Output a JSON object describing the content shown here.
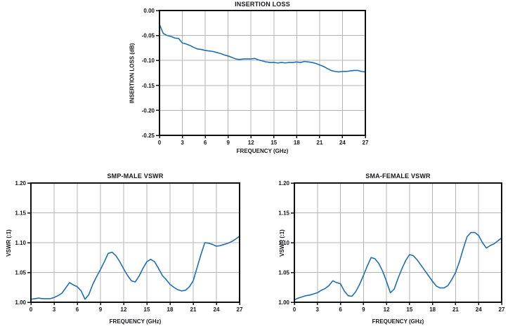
{
  "page": {
    "background": "#ffffff"
  },
  "style": {
    "line_color": "#1f6eb3",
    "grid_color": "#b5b5b5",
    "axis_color": "#111111",
    "text_color": "#15151d",
    "tick_font_size": 8
  },
  "chart_data": [
    {
      "id": "insertion-loss",
      "type": "line",
      "title": "INSERTION LOSS",
      "xlabel": "FREQUENCY (GHz)",
      "ylabel": "INSERTION LOSS (dB)",
      "xlim": [
        0,
        27
      ],
      "ylim": [
        -0.25,
        0.0
      ],
      "x_ticks": [
        0,
        3,
        6,
        9,
        12,
        15,
        18,
        21,
        24,
        27
      ],
      "x_tick_labels": [
        "0",
        "3",
        "6",
        "9",
        "12",
        "15",
        "18",
        "21",
        "24",
        "27"
      ],
      "y_ticks": [
        0.0,
        -0.05,
        -0.1,
        -0.15,
        -0.2,
        -0.25
      ],
      "y_tick_labels": [
        "0.00",
        "-0.05",
        "-0.10",
        "-0.15",
        "-0.20",
        "-0.25"
      ],
      "grid": true,
      "legend": "none",
      "series": [
        {
          "name": "insertion-loss",
          "x_start": 0,
          "x_step": 0.5,
          "values": [
            -0.028,
            -0.046,
            -0.05,
            -0.052,
            -0.055,
            -0.056,
            -0.065,
            -0.067,
            -0.07,
            -0.074,
            -0.077,
            -0.078,
            -0.08,
            -0.081,
            -0.082,
            -0.084,
            -0.086,
            -0.089,
            -0.091,
            -0.094,
            -0.097,
            -0.098,
            -0.097,
            -0.097,
            -0.097,
            -0.096,
            -0.099,
            -0.101,
            -0.103,
            -0.104,
            -0.104,
            -0.105,
            -0.104,
            -0.105,
            -0.104,
            -0.104,
            -0.103,
            -0.104,
            -0.102,
            -0.103,
            -0.104,
            -0.106,
            -0.109,
            -0.112,
            -0.116,
            -0.12,
            -0.122,
            -0.123,
            -0.122,
            -0.122,
            -0.121,
            -0.12,
            -0.12,
            -0.122,
            -0.123
          ]
        }
      ]
    },
    {
      "id": "smp-male-vswr",
      "type": "line",
      "title": "SMP-MALE VSWR",
      "xlabel": "FREQUENCY (GHz)",
      "ylabel": "VSWR (:1)",
      "xlim": [
        0,
        27
      ],
      "ylim": [
        1.0,
        1.2
      ],
      "x_ticks": [
        0,
        3,
        6,
        9,
        12,
        15,
        18,
        21,
        24,
        27
      ],
      "x_tick_labels": [
        "0",
        "3",
        "6",
        "9",
        "12",
        "15",
        "18",
        "21",
        "24",
        "27"
      ],
      "y_ticks": [
        1.0,
        1.05,
        1.1,
        1.15,
        1.2
      ],
      "y_tick_labels": [
        "1.00",
        "1.05",
        "1.10",
        "1.15",
        "1.20"
      ],
      "grid": true,
      "legend": "none",
      "series": [
        {
          "name": "smp-male-vswr",
          "x_start": 0,
          "x_step": 0.5,
          "values": [
            1.005,
            1.006,
            1.007,
            1.006,
            1.006,
            1.006,
            1.008,
            1.011,
            1.015,
            1.024,
            1.033,
            1.029,
            1.026,
            1.019,
            1.005,
            1.013,
            1.03,
            1.043,
            1.055,
            1.068,
            1.082,
            1.084,
            1.078,
            1.068,
            1.056,
            1.045,
            1.036,
            1.034,
            1.044,
            1.057,
            1.068,
            1.072,
            1.068,
            1.057,
            1.045,
            1.038,
            1.03,
            1.025,
            1.021,
            1.019,
            1.02,
            1.026,
            1.036,
            1.058,
            1.08,
            1.1,
            1.099,
            1.097,
            1.094,
            1.095,
            1.097,
            1.099,
            1.102,
            1.106,
            1.111
          ]
        }
      ]
    },
    {
      "id": "sma-female-vswr",
      "type": "line",
      "title": "SMA-FEMALE VSWR",
      "xlabel": "FREQUENCY (GHz)",
      "ylabel": "VSWR (:1)",
      "xlim": [
        0,
        27
      ],
      "ylim": [
        1.0,
        1.2
      ],
      "x_ticks": [
        0,
        3,
        6,
        9,
        12,
        15,
        18,
        21,
        24,
        27
      ],
      "x_tick_labels": [
        "0",
        "3",
        "6",
        "9",
        "12",
        "15",
        "18",
        "21",
        "24",
        "27"
      ],
      "y_ticks": [
        1.0,
        1.05,
        1.1,
        1.15,
        1.2
      ],
      "y_tick_labels": [
        "1.00",
        "1.05",
        "1.10",
        "1.15",
        "1.20"
      ],
      "grid": true,
      "legend": "none",
      "series": [
        {
          "name": "sma-female-vswr",
          "x_start": 0,
          "x_step": 0.5,
          "values": [
            1.004,
            1.007,
            1.009,
            1.011,
            1.012,
            1.014,
            1.016,
            1.02,
            1.023,
            1.028,
            1.036,
            1.033,
            1.031,
            1.019,
            1.011,
            1.01,
            1.018,
            1.03,
            1.045,
            1.061,
            1.075,
            1.073,
            1.065,
            1.052,
            1.035,
            1.016,
            1.022,
            1.04,
            1.056,
            1.07,
            1.08,
            1.078,
            1.071,
            1.062,
            1.053,
            1.044,
            1.035,
            1.027,
            1.024,
            1.024,
            1.028,
            1.038,
            1.05,
            1.068,
            1.09,
            1.11,
            1.117,
            1.117,
            1.112,
            1.1,
            1.091,
            1.095,
            1.098,
            1.103,
            1.108
          ]
        }
      ]
    }
  ]
}
